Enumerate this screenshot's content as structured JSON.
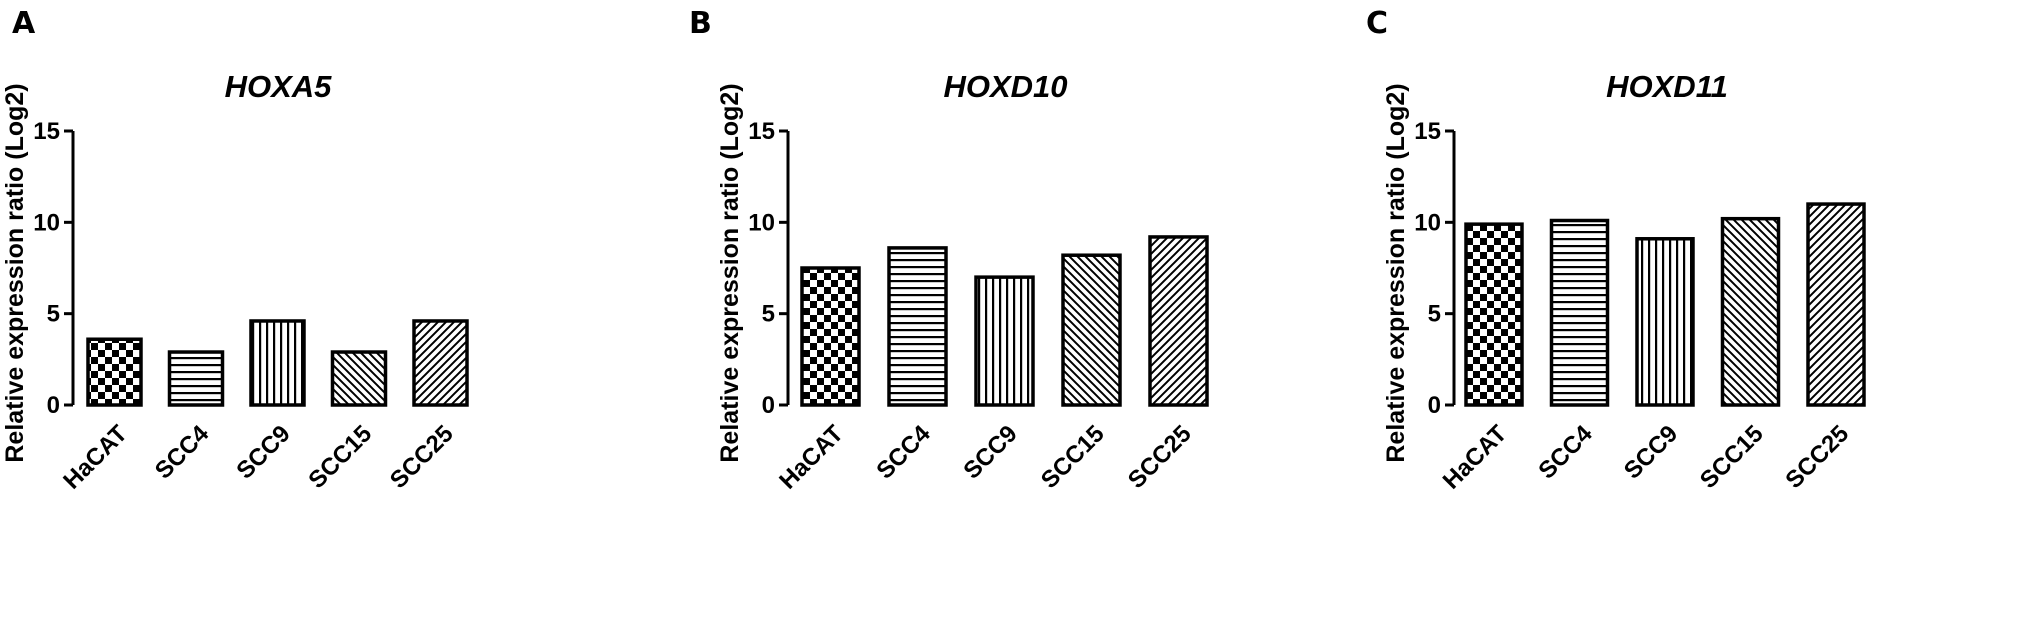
{
  "chart_data": [
    {
      "panel_letter": "A",
      "type": "bar",
      "title": "HOXA5",
      "ylabel": "Relative expression ratio (Log2)",
      "xlabel": "",
      "categories": [
        "HaCAT",
        "SCC4",
        "SCC9",
        "SCC15",
        "SCC25"
      ],
      "values": [
        3.6,
        2.9,
        4.6,
        2.9,
        4.6
      ],
      "patterns": [
        "checker",
        "horizontal",
        "vertical",
        "diag-down",
        "diag-up"
      ],
      "ylim": [
        0,
        15
      ],
      "yticks": [
        "0",
        "5",
        "10",
        "15"
      ],
      "grid": false
    },
    {
      "panel_letter": "B",
      "type": "bar",
      "title": "HOXD10",
      "ylabel": "Relative expression ratio (Log2)",
      "xlabel": "",
      "categories": [
        "HaCAT",
        "SCC4",
        "SCC9",
        "SCC15",
        "SCC25"
      ],
      "values": [
        7.5,
        8.6,
        7.0,
        8.2,
        9.2
      ],
      "patterns": [
        "checker",
        "horizontal",
        "vertical",
        "diag-down",
        "diag-up"
      ],
      "ylim": [
        0,
        15
      ],
      "yticks": [
        "0",
        "5",
        "10",
        "15"
      ],
      "grid": false
    },
    {
      "panel_letter": "C",
      "type": "bar",
      "title": "HOXD11",
      "ylabel": "Relative expression ratio (Log2)",
      "xlabel": "",
      "categories": [
        "HaCAT",
        "SCC4",
        "SCC9",
        "SCC15",
        "SCC25"
      ],
      "values": [
        9.9,
        10.1,
        9.1,
        10.2,
        11.0
      ],
      "patterns": [
        "checker",
        "horizontal",
        "vertical",
        "diag-down",
        "diag-up"
      ],
      "ylim": [
        0,
        15
      ],
      "yticks": [
        "0",
        "5",
        "10",
        "15"
      ],
      "grid": false
    }
  ]
}
